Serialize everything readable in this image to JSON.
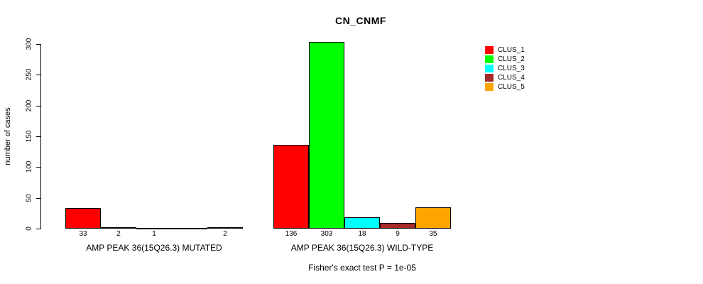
{
  "chart_data": {
    "type": "bar",
    "title": "CN_CNMF",
    "ylabel": "number of cases",
    "ylim": [
      0,
      300
    ],
    "yticks": [
      0,
      50,
      100,
      150,
      200,
      250,
      300
    ],
    "categories": [
      "AMP PEAK 36(15Q26.3) MUTATED",
      "AMP PEAK 36(15Q26.3) WILD-TYPE"
    ],
    "series": [
      {
        "name": "CLUS_1",
        "color": "#FF0000",
        "values": [
          33,
          136
        ]
      },
      {
        "name": "CLUS_2",
        "color": "#00FF00",
        "values": [
          2,
          303
        ]
      },
      {
        "name": "CLUS_3",
        "color": "#00FFFF",
        "values": [
          1,
          18
        ]
      },
      {
        "name": "CLUS_4",
        "color": "#A52A2A",
        "values": [
          0,
          9
        ]
      },
      {
        "name": "CLUS_5",
        "color": "#FFA500",
        "values": [
          2,
          35
        ]
      }
    ],
    "bar_count_labels": [
      [
        "33",
        "2",
        "1",
        "",
        "2"
      ],
      [
        "136",
        "303",
        "18",
        "9",
        "35"
      ]
    ],
    "annotation": "Fisher's exact test P = 1e-05",
    "legend_position": "right",
    "grid": false,
    "axis_color": "#000000",
    "background_color": "#FFFFFF"
  }
}
